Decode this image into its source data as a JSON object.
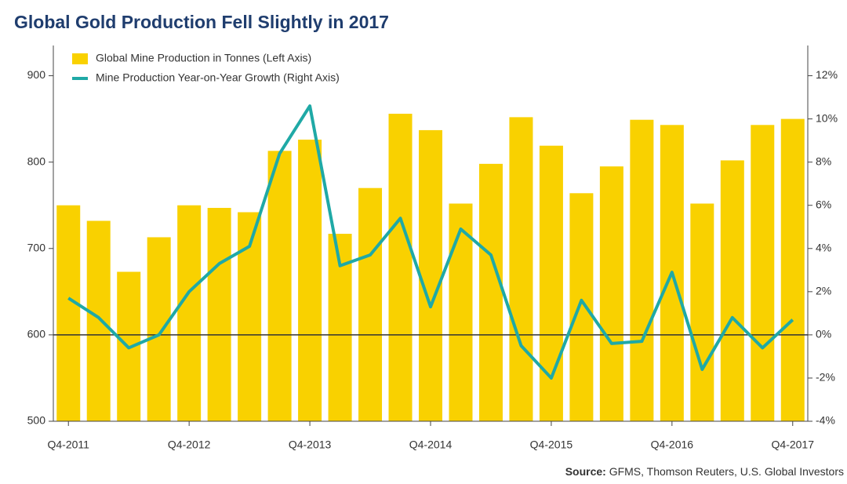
{
  "chart_data": {
    "type": "bar_line",
    "title": "Global Gold Production Fell Slightly in 2017",
    "categories": [
      "Q4-2011",
      null,
      null,
      null,
      "Q4-2012",
      null,
      null,
      null,
      "Q4-2013",
      null,
      null,
      null,
      "Q4-2014",
      null,
      null,
      null,
      "Q4-2015",
      null,
      null,
      null,
      "Q4-2016",
      null,
      null,
      null,
      "Q4-2017"
    ],
    "series": [
      {
        "name": "Global Mine Production in Tonnes (Left Axis)",
        "type": "bar",
        "color": "#f9d100",
        "values": [
          750,
          732,
          673,
          713,
          750,
          747,
          742,
          813,
          826,
          717,
          770,
          856,
          837,
          752,
          798,
          852,
          819,
          764,
          795,
          849,
          843,
          752,
          802,
          843,
          850
        ]
      },
      {
        "name": "Mine Production Year-on-Year Growth (Right Axis)",
        "type": "line",
        "axis": "y2",
        "color": "#1fa9a6",
        "values": [
          1.7,
          0.8,
          -0.6,
          0,
          2.0,
          3.3,
          4.1,
          8.4,
          10.6,
          3.2,
          3.7,
          5.4,
          1.3,
          4.9,
          3.7,
          -0.5,
          -2.0,
          1.6,
          -0.4,
          -0.3,
          2.9,
          -1.6,
          0.8,
          -0.6,
          0.7
        ]
      }
    ],
    "ylim": [
      500,
      935
    ],
    "yticks": [
      500,
      600,
      700,
      800,
      900
    ],
    "y2lim": [
      -4,
      13.4
    ],
    "y2ticks": [
      {
        "value": -4,
        "label": "-4%"
      },
      {
        "value": -2,
        "label": "-2%"
      },
      {
        "value": 0,
        "label": "0%"
      },
      {
        "value": 2,
        "label": "2%"
      },
      {
        "value": 4,
        "label": "4%"
      },
      {
        "value": 6,
        "label": "6%"
      },
      {
        "value": 8,
        "label": "8%"
      },
      {
        "value": 10,
        "label": "10%"
      },
      {
        "value": 12,
        "label": "12%"
      }
    ],
    "zero_line": 0,
    "legend": "top-left",
    "source_label": "Source:",
    "source": "GFMS, Thomson Reuters, U.S. Global Investors"
  }
}
